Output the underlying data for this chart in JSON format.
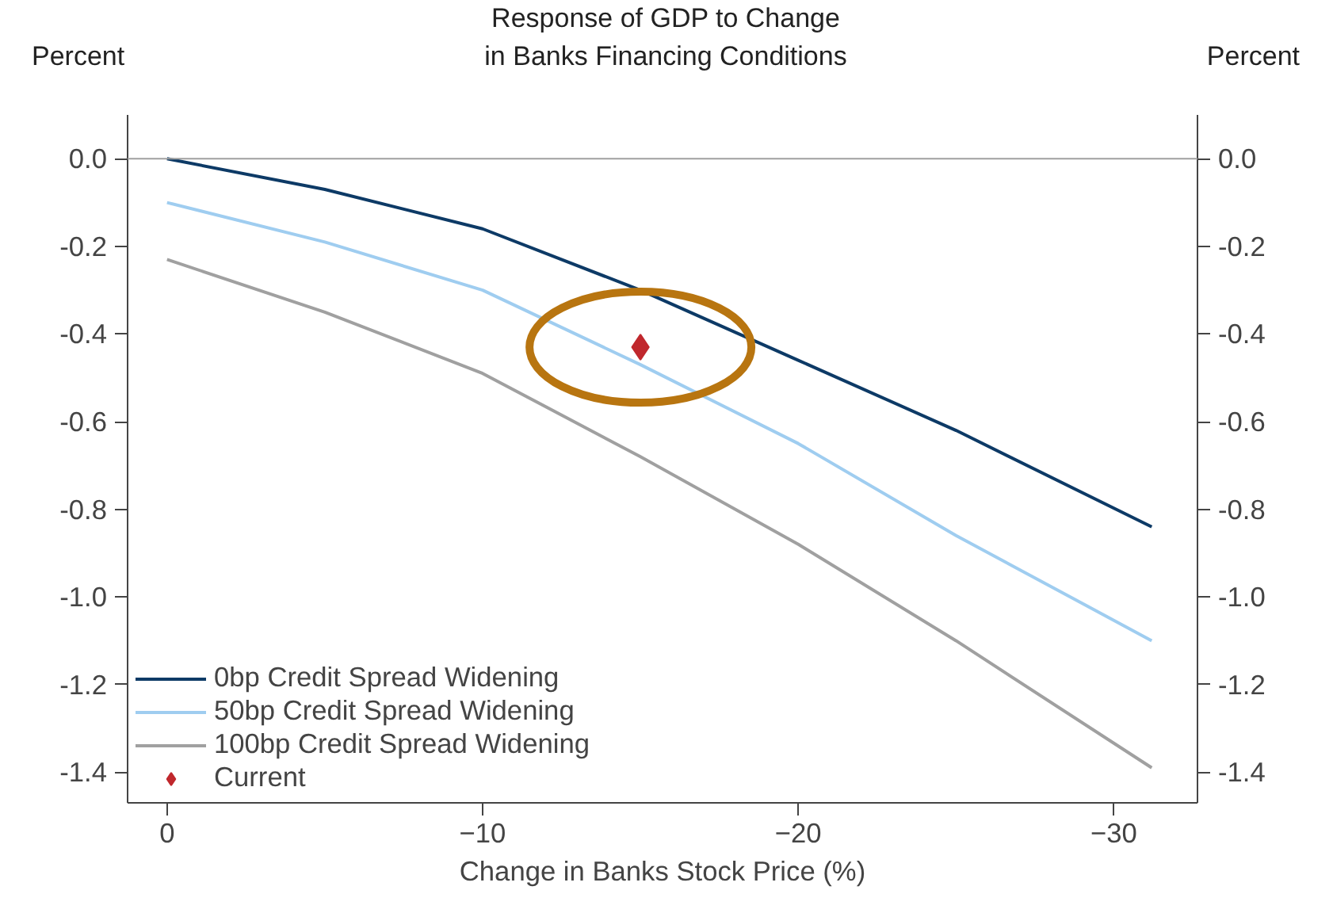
{
  "chart_data": {
    "type": "line",
    "title": "Response of GDP to Change\nin Banks Financing Conditions",
    "xlabel": "Change in Banks Stock Price (%)",
    "ylabel": "Percent",
    "y2label": "Percent",
    "xlim": [
      1.25,
      -32.65
    ],
    "xticks": [
      0,
      -10,
      -20,
      -30
    ],
    "ylim": [
      -1.47,
      0.1
    ],
    "yticks": [
      {
        "value": 0,
        "label": "0.0"
      },
      {
        "value": -0.2,
        "label": "-0.2"
      },
      {
        "value": -0.4,
        "label": "-0.4"
      },
      {
        "value": -0.6,
        "label": "-0.6"
      },
      {
        "value": -0.8,
        "label": "-0.8"
      },
      {
        "value": -1.0,
        "label": "-1.0"
      },
      {
        "value": -1.2,
        "label": "-1.2"
      },
      {
        "value": -1.4,
        "label": "-1.4"
      }
    ],
    "y2lim": [
      -1.47,
      0.1
    ],
    "y2ticks": [
      {
        "value": 0,
        "label": "0.0"
      },
      {
        "value": -0.2,
        "label": "-0.2"
      },
      {
        "value": -0.4,
        "label": "-0.4"
      },
      {
        "value": -0.6,
        "label": "-0.6"
      },
      {
        "value": -0.8,
        "label": "-0.8"
      },
      {
        "value": -1.0,
        "label": "-1.0"
      },
      {
        "value": -1.2,
        "label": "-1.2"
      },
      {
        "value": -1.4,
        "label": "-1.4"
      }
    ],
    "x": [
      0,
      -5,
      -10,
      -15,
      -20,
      -25,
      -31.2
    ],
    "series": [
      {
        "name": "0bp Credit Spread Widening",
        "color": "#0d3a66",
        "values": [
          0,
          -0.07,
          -0.16,
          -0.3,
          -0.46,
          -0.62,
          -0.84
        ]
      },
      {
        "name": "50bp Credit Spread Widening",
        "color": "#9fcdf0",
        "values": [
          -0.1,
          -0.19,
          -0.3,
          -0.47,
          -0.65,
          -0.86,
          -1.1
        ]
      },
      {
        "name": "100bp Credit Spread Widening",
        "color": "#a0a0a0",
        "values": [
          -0.23,
          -0.35,
          -0.49,
          -0.68,
          -0.88,
          -1.1,
          -1.39
        ]
      },
      {
        "name": "Current",
        "type": "scatter",
        "marker": "diamond",
        "color": "#c0282d",
        "x": [
          -15
        ],
        "values": [
          -0.43
        ]
      }
    ],
    "ref_lines": [
      {
        "axis": "y",
        "value": 0,
        "color": "#a0a0a0"
      }
    ],
    "grid": false,
    "legend": "bottom left"
  }
}
